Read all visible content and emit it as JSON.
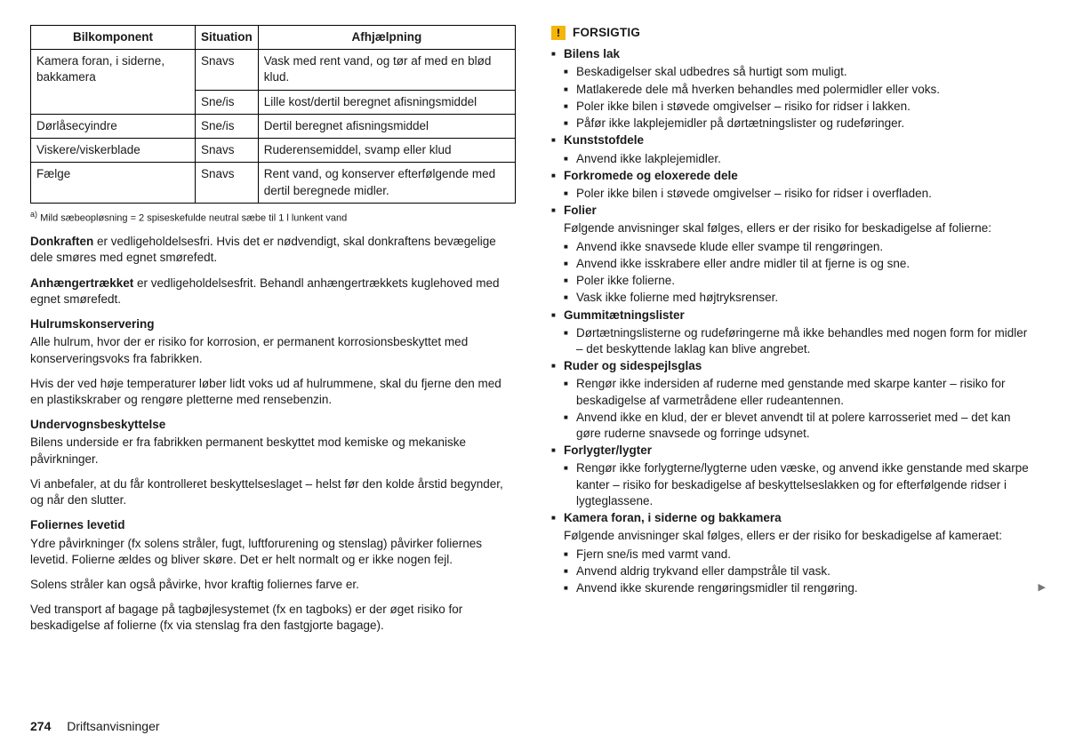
{
  "table": {
    "headers": [
      "Bilkomponent",
      "Situation",
      "Afhjælpning"
    ],
    "rows": [
      {
        "c0": "Kamera foran, i siderne, bakkamera",
        "c1": "Snavs",
        "c2": "Vask med rent vand, og tør af med en blød klud.",
        "rowspan0": 2
      },
      {
        "c0": "",
        "c1": "Sne/is",
        "c2": "Lille kost/dertil beregnet afisningsmiddel"
      },
      {
        "c0": "Dørlåsecyindre",
        "c1": "Sne/is",
        "c2": "Dertil beregnet afisningsmiddel"
      },
      {
        "c0": "Viskere/viskerblade",
        "c1": "Snavs",
        "c2": "Ruderensemiddel, svamp eller klud"
      },
      {
        "c0": "Fælge",
        "c1": "Snavs",
        "c2": "Rent vand, og konserver efterfølgende med dertil beregnede midler."
      }
    ]
  },
  "footnote_marker": "a)",
  "footnote": "Mild sæbeopløsning = 2 spiseskefulde neutral sæbe til 1 l lunkent vand",
  "p1a": "Donkraften",
  "p1b": " er vedligeholdelsesfri. Hvis det er nødvendigt, skal donkraftens bevægelige dele smøres med egnet smørefedt.",
  "p2a": "Anhængertrækket",
  "p2b": " er vedligeholdelsesfrit. Behandl anhængertrækkets kuglehoved med egnet smørefedt.",
  "h1": "Hulrumskonservering",
  "p3": "Alle hulrum, hvor der er risiko for korrosion, er permanent korrosionsbeskyttet med konserveringsvoks fra fabrikken.",
  "p4": "Hvis der ved høje temperaturer løber lidt voks ud af hulrummene, skal du fjerne den med en plastikskraber og rengøre pletterne med rensebenzin.",
  "h2": "Undervognsbeskyttelse",
  "p5": "Bilens underside er fra fabrikken permanent beskyttet mod kemiske og mekaniske påvirkninger.",
  "p6": "Vi anbefaler, at du får kontrolleret beskyttelseslaget – helst før den kolde årstid begynder, og når den slutter.",
  "h3": "Foliernes levetid",
  "p7": "Ydre påvirkninger (fx solens stråler, fugt, luftforurening og stenslag) påvirker foliernes levetid. Folierne ældes og bliver skøre. Det er helt normalt og er ikke nogen fejl.",
  "p8": "Solens stråler kan også påvirke, hvor kraftig foliernes farve er.",
  "p9": "Ved transport af bagage på tagbøjlesystemet (fx en tagboks) er der øget risiko for beskadigelse af folierne (fx via stenslag fra den fastgjorte bagage).",
  "warn": {
    "title": "FORSIGTIG",
    "sections": [
      {
        "head": "Bilens lak",
        "body": "",
        "items": [
          "Beskadigelser skal udbedres så hurtigt som muligt.",
          "Matlakerede dele må hverken behandles med polermidler eller voks.",
          "Poler ikke bilen i støvede omgivelser – risiko for ridser i lakken.",
          "Påfør ikke lakplejemidler på dørtætningslister og rudeføringer."
        ]
      },
      {
        "head": "Kunststofdele",
        "body": "",
        "items": [
          "Anvend ikke lakplejemidler."
        ]
      },
      {
        "head": "Forkromede og eloxerede dele",
        "body": "",
        "items": [
          "Poler ikke bilen i støvede omgivelser – risiko for ridser i overfladen."
        ]
      },
      {
        "head": "Folier",
        "body": "Følgende anvisninger skal følges, ellers er der risiko for beskadigelse af folierne:",
        "items": [
          "Anvend ikke snavsede klude eller svampe til rengøringen.",
          "Anvend ikke isskrabere eller andre midler til at fjerne is og sne.",
          "Poler ikke folierne.",
          "Vask ikke folierne med højtryksrenser."
        ]
      },
      {
        "head": "Gummitætningslister",
        "body": "",
        "items": [
          "Dørtætningslisterne og rudeføringerne må ikke behandles med nogen form for midler – det beskyttende laklag kan blive angrebet."
        ]
      },
      {
        "head": "Ruder og sidespejlsglas",
        "body": "",
        "items": [
          "Rengør ikke indersiden af ruderne med genstande med skarpe kanter – risiko for beskadigelse af varmetrådene eller rudeantennen.",
          "Anvend ikke en klud, der er blevet anvendt til at polere karrosseriet med – det kan gøre ruderne snavsede og forringe udsynet."
        ]
      },
      {
        "head": "Forlygter/lygter",
        "body": "",
        "items": [
          "Rengør ikke forlygterne/lygterne uden væske, og anvend ikke genstande med skarpe kanter – risiko for beskadigelse af beskyttelseslakken og for efterfølgende ridser i lygteglassene."
        ]
      },
      {
        "head": "Kamera foran, i siderne og bakkamera",
        "body": "Følgende anvisninger skal følges, ellers er der risiko for beskadigelse af kameraet:",
        "items": [
          "Fjern sne/is med varmt vand.",
          "Anvend aldrig trykvand eller dampstråle til vask.",
          "Anvend ikke skurende rengøringsmidler til rengøring."
        ]
      }
    ]
  },
  "page_number": "274",
  "page_section": "Driftsanvisninger",
  "arrow": "▶"
}
